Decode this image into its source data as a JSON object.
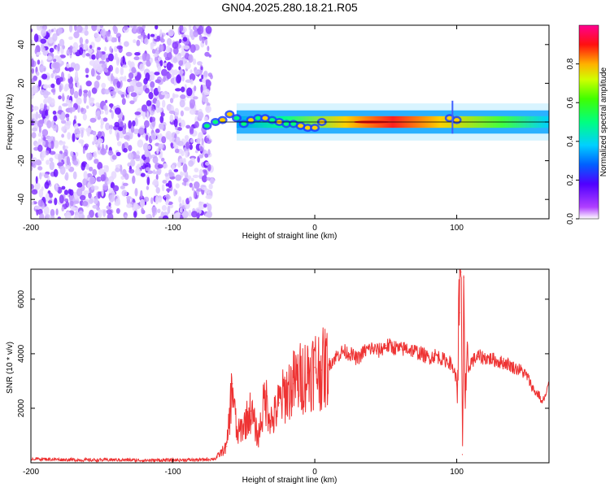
{
  "title": "GN04.2025.280.18.21.R05",
  "chart_data": [
    {
      "type": "heatmap",
      "name": "spectrogram",
      "xlabel": "Height of straight line (km)",
      "ylabel": "Frequency (Hz)",
      "xlim": [
        -200,
        165
      ],
      "ylim": [
        -50,
        50
      ],
      "xticks": [
        -200,
        -100,
        0,
        100
      ],
      "yticks": [
        -40,
        -20,
        0,
        20,
        40
      ],
      "colorbar": {
        "label": "Normalized spectral amplitude",
        "range": [
          0,
          1
        ],
        "ticks": [
          0.0,
          0.2,
          0.4,
          0.6,
          0.8
        ]
      },
      "regions": [
        {
          "name": "noise-field",
          "x": [
            -200,
            -78
          ],
          "freq": [
            -50,
            50
          ],
          "amplitude": 0.1
        },
        {
          "name": "signal-band",
          "x": [
            -78,
            165
          ],
          "center_freq_hz": 0,
          "half_width_hz": 3,
          "peak_amplitude_x": 40
        }
      ]
    },
    {
      "type": "line",
      "name": "snr",
      "xlabel": "Height of straight line (km)",
      "ylabel": "SNR (10 * v/v)",
      "xlim": [
        -200,
        165
      ],
      "ylim": [
        0,
        7100
      ],
      "xticks": [
        -200,
        -100,
        0,
        100
      ],
      "yticks": [
        2000,
        4000,
        6000
      ],
      "color": "#ee3333",
      "series": [
        {
          "name": "SNR",
          "x": [
            -200,
            -180,
            -160,
            -140,
            -120,
            -100,
            -80,
            -70,
            -62,
            -58,
            -55,
            -50,
            -45,
            -40,
            -35,
            -30,
            -25,
            -20,
            -15,
            -10,
            -5,
            0,
            5,
            10,
            15,
            20,
            25,
            30,
            35,
            40,
            45,
            50,
            55,
            60,
            65,
            70,
            75,
            80,
            85,
            90,
            95,
            98,
            100,
            102,
            103,
            104,
            105,
            106,
            108,
            110,
            115,
            120,
            125,
            130,
            135,
            140,
            145,
            150,
            152,
            155,
            158,
            160,
            163,
            165
          ],
          "y": [
            150,
            120,
            100,
            110,
            90,
            100,
            110,
            150,
            600,
            2900,
            1000,
            1400,
            1900,
            900,
            2400,
            1500,
            2200,
            2600,
            2900,
            3100,
            3300,
            3500,
            3400,
            3600,
            3900,
            4100,
            4000,
            3800,
            4100,
            4200,
            4100,
            4300,
            4250,
            4150,
            4200,
            4100,
            4000,
            3850,
            3950,
            3800,
            3700,
            3400,
            3000,
            5500,
            7000,
            300,
            6800,
            2000,
            3400,
            3700,
            3900,
            3850,
            3800,
            3700,
            3650,
            3500,
            3400,
            3150,
            2900,
            2600,
            2500,
            2200,
            2500,
            2900
          ]
        }
      ]
    }
  ]
}
